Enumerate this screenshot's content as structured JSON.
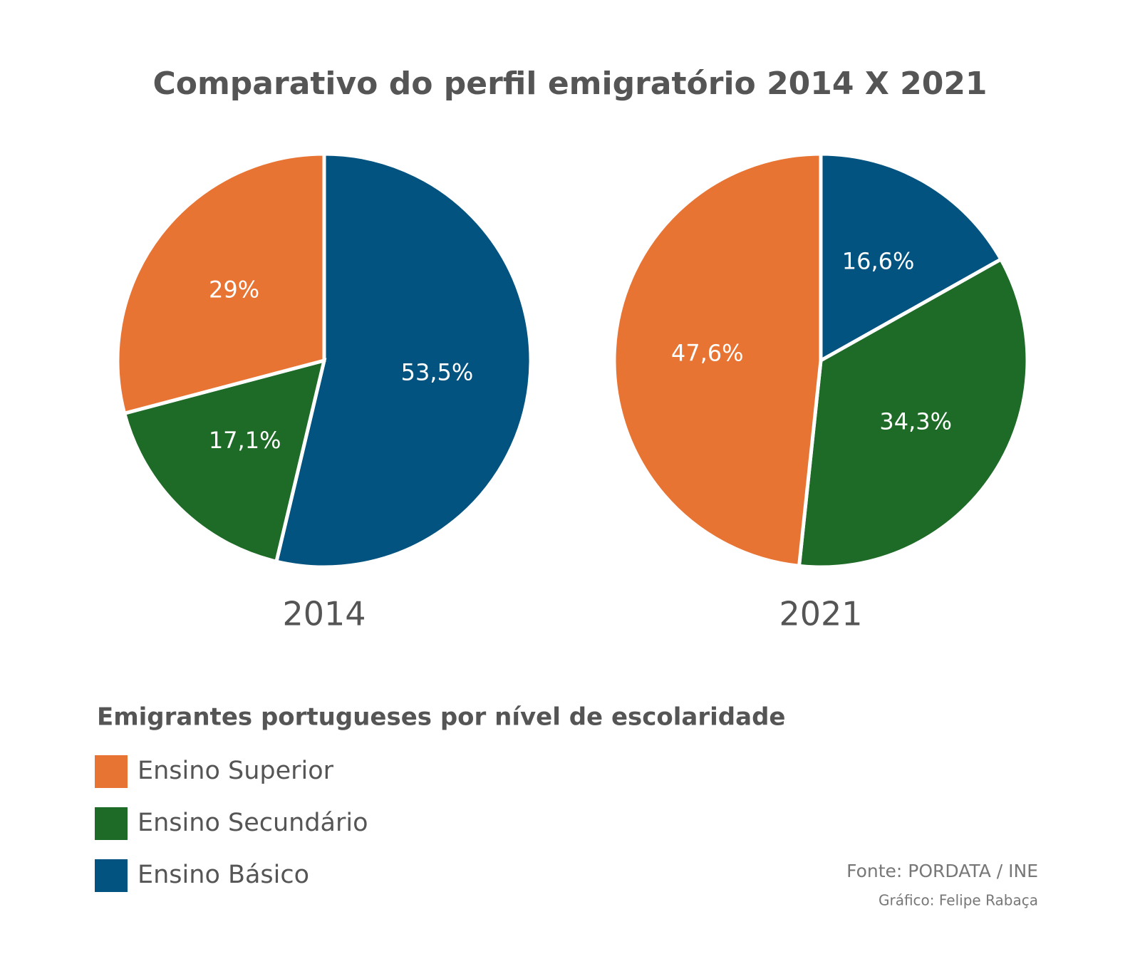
{
  "title": "Comparativo do perfil emigratório 2014 X 2021",
  "chart_data": [
    {
      "type": "pie",
      "title": "2014",
      "categories": [
        "Ensino Superior",
        "Ensino Secundário",
        "Ensino Básico"
      ],
      "values": [
        29,
        17.1,
        53.5
      ],
      "value_labels": [
        "29%",
        "17,1%",
        "53,5%"
      ],
      "colors": [
        "#e87434",
        "#1e6b28",
        "#02537f"
      ]
    },
    {
      "type": "pie",
      "title": "2021",
      "categories": [
        "Ensino Superior",
        "Ensino Secundário",
        "Ensino Básico"
      ],
      "values": [
        47.6,
        34.3,
        16.6
      ],
      "value_labels": [
        "47,6%",
        "34,3%",
        "16,6%"
      ],
      "colors": [
        "#e87434",
        "#1e6b28",
        "#02537f"
      ]
    }
  ],
  "legend_title": "Emigrantes portugueses por nível de escolaridade",
  "source": "Fonte: PORDATA / INE",
  "credit": "Gráfico: Felipe Rabaça"
}
